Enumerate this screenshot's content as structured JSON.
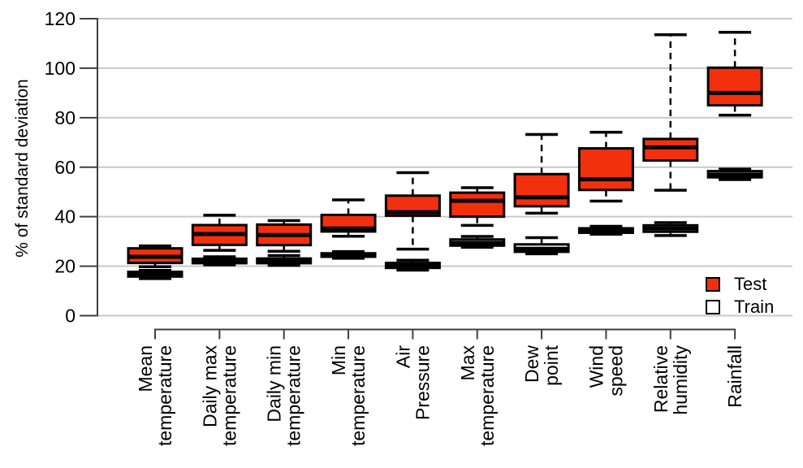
{
  "chart_data": {
    "type": "boxplot",
    "title": "",
    "xlabel": "",
    "ylabel": "% of standard deviation",
    "ylim": [
      0,
      120
    ],
    "yticks": [
      0,
      20,
      40,
      60,
      80,
      100,
      120
    ],
    "grid": "horizontal",
    "legend_position": "inside lower right",
    "colors": {
      "test_fill": "#F2300D",
      "train_fill": "#FFFFFF",
      "box_stroke": "#000000",
      "grid_line": "#C9C9C9",
      "axis_line": "#3F3F3F",
      "text": "#000000"
    },
    "categories": [
      {
        "label": "Mean temperature",
        "lines": [
          "Mean",
          "temperature"
        ]
      },
      {
        "label": "Daily max temperature",
        "lines": [
          "Daily max",
          "temperature"
        ]
      },
      {
        "label": "Daily min temperature",
        "lines": [
          "Daily min",
          "temperature"
        ]
      },
      {
        "label": "Min temperature",
        "lines": [
          "Min",
          "temperature"
        ]
      },
      {
        "label": "Air Pressure",
        "lines": [
          "Air",
          "Pressure"
        ]
      },
      {
        "label": "Max temperature",
        "lines": [
          "Max",
          "temperature"
        ]
      },
      {
        "label": "Dew point",
        "lines": [
          "Dew",
          "point"
        ]
      },
      {
        "label": "Wind speed",
        "lines": [
          "Wind",
          "speed"
        ]
      },
      {
        "label": "Relative humidity",
        "lines": [
          "Relative",
          "humidity"
        ]
      },
      {
        "label": "Rainfall",
        "lines": [
          "Rainfall"
        ]
      }
    ],
    "series": [
      {
        "name": "Test",
        "fill": "#F2300D",
        "boxes": [
          {
            "whislo": 19.8,
            "q1": 21.3,
            "med": 23.8,
            "q3": 27.2,
            "whishi": 28.2
          },
          {
            "whislo": 26.4,
            "q1": 28.6,
            "med": 33.0,
            "q3": 36.6,
            "whishi": 40.6
          },
          {
            "whislo": 26.0,
            "q1": 28.5,
            "med": 32.6,
            "q3": 36.8,
            "whishi": 38.4
          },
          {
            "whislo": 32.1,
            "q1": 34.0,
            "med": 35.2,
            "q3": 40.7,
            "whishi": 46.8
          },
          {
            "whislo": 26.9,
            "q1": 40.4,
            "med": 41.8,
            "q3": 48.5,
            "whishi": 57.8
          },
          {
            "whislo": 36.5,
            "q1": 40.0,
            "med": 46.4,
            "q3": 49.7,
            "whishi": 51.7
          },
          {
            "whislo": 41.4,
            "q1": 44.2,
            "med": 47.8,
            "q3": 57.2,
            "whishi": 73.2
          },
          {
            "whislo": 46.3,
            "q1": 50.8,
            "med": 55.1,
            "q3": 67.6,
            "whishi": 74.1
          },
          {
            "whislo": 50.7,
            "q1": 62.7,
            "med": 68.0,
            "q3": 71.4,
            "whishi": 113.5
          },
          {
            "whislo": 81.0,
            "q1": 85.0,
            "med": 90.0,
            "q3": 100.2,
            "whishi": 114.5
          }
        ]
      },
      {
        "name": "Train",
        "fill": "#FFFFFF",
        "boxes": [
          {
            "whislo": 15.0,
            "q1": 15.8,
            "med": 16.7,
            "q3": 17.7,
            "whishi": 18.3
          },
          {
            "whislo": 20.5,
            "q1": 21.2,
            "med": 22.0,
            "q3": 23.0,
            "whishi": 23.8
          },
          {
            "whislo": 20.3,
            "q1": 21.2,
            "med": 22.1,
            "q3": 23.1,
            "whishi": 24.3
          },
          {
            "whislo": 23.2,
            "q1": 23.8,
            "med": 24.4,
            "q3": 25.2,
            "whishi": 25.9
          },
          {
            "whislo": 18.4,
            "q1": 19.3,
            "med": 20.3,
            "q3": 21.3,
            "whishi": 22.4
          },
          {
            "whislo": 27.6,
            "q1": 28.3,
            "med": 29.4,
            "q3": 30.8,
            "whishi": 32.0
          },
          {
            "whislo": 25.0,
            "q1": 25.8,
            "med": 27.0,
            "q3": 28.8,
            "whishi": 31.5
          },
          {
            "whislo": 32.9,
            "q1": 33.5,
            "med": 34.3,
            "q3": 35.3,
            "whishi": 36.1
          },
          {
            "whislo": 32.4,
            "q1": 33.9,
            "med": 35.2,
            "q3": 36.5,
            "whishi": 37.6
          },
          {
            "whislo": 55.0,
            "q1": 55.9,
            "med": 57.0,
            "q3": 58.4,
            "whishi": 59.2
          }
        ]
      }
    ]
  }
}
